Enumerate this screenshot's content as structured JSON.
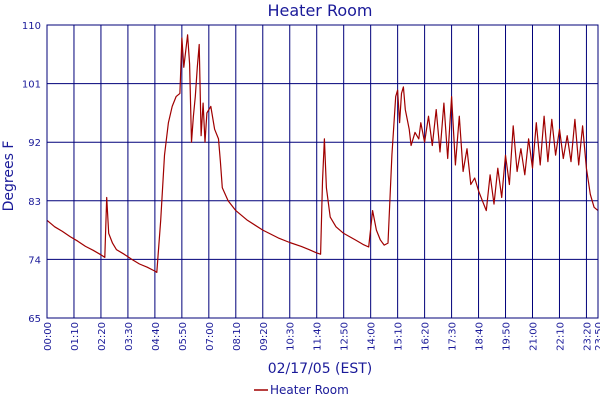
{
  "colors": {
    "grid": "#00007a",
    "text": "#1a1a99",
    "series": "#a00000",
    "background": "#ffffff"
  },
  "chart_data": {
    "type": "line",
    "title": "Heater Room",
    "xlabel": "02/17/05 (EST)",
    "ylabel": "Degrees F",
    "ylim": [
      65,
      110
    ],
    "xlim": [
      "00:00",
      "23:50"
    ],
    "grid": true,
    "legend_position": "bottom-center",
    "y_ticks": [
      65,
      74,
      83,
      92,
      101,
      110
    ],
    "x_ticks": [
      "00:00",
      "01:10",
      "02:20",
      "03:30",
      "04:40",
      "05:50",
      "07:00",
      "08:10",
      "09:20",
      "10:30",
      "11:40",
      "12:50",
      "14:00",
      "15:10",
      "16:20",
      "17:30",
      "18:40",
      "19:50",
      "21:00",
      "22:10",
      "23:20",
      "23:50"
    ],
    "series": [
      {
        "name": "Heater Room",
        "color": "#a00000",
        "points": [
          [
            "00:00",
            80.0
          ],
          [
            "00:20",
            79.0
          ],
          [
            "00:40",
            78.3
          ],
          [
            "01:00",
            77.5
          ],
          [
            "01:20",
            76.8
          ],
          [
            "01:40",
            76.0
          ],
          [
            "02:00",
            75.4
          ],
          [
            "02:20",
            74.7
          ],
          [
            "02:30",
            74.3
          ],
          [
            "02:35",
            83.5
          ],
          [
            "02:40",
            78.0
          ],
          [
            "02:50",
            76.5
          ],
          [
            "03:00",
            75.5
          ],
          [
            "03:20",
            74.8
          ],
          [
            "03:40",
            74.0
          ],
          [
            "04:00",
            73.3
          ],
          [
            "04:20",
            72.8
          ],
          [
            "04:40",
            72.2
          ],
          [
            "04:45",
            72.0
          ],
          [
            "04:55",
            80.0
          ],
          [
            "05:05",
            90.0
          ],
          [
            "05:15",
            95.0
          ],
          [
            "05:25",
            97.5
          ],
          [
            "05:35",
            99.0
          ],
          [
            "05:45",
            99.5
          ],
          [
            "05:50",
            108.0
          ],
          [
            "05:55",
            103.5
          ],
          [
            "06:05",
            108.5
          ],
          [
            "06:10",
            104.0
          ],
          [
            "06:15",
            92.0
          ],
          [
            "06:20",
            96.0
          ],
          [
            "06:25",
            99.0
          ],
          [
            "06:30",
            103.5
          ],
          [
            "06:35",
            107.0
          ],
          [
            "06:40",
            93.0
          ],
          [
            "06:45",
            98.0
          ],
          [
            "06:50",
            92.0
          ],
          [
            "06:55",
            96.5
          ],
          [
            "07:05",
            97.5
          ],
          [
            "07:15",
            94.0
          ],
          [
            "07:25",
            92.5
          ],
          [
            "07:30",
            89.0
          ],
          [
            "07:35",
            85.0
          ],
          [
            "07:50",
            83.0
          ],
          [
            "08:10",
            81.5
          ],
          [
            "08:40",
            80.0
          ],
          [
            "09:20",
            78.5
          ],
          [
            "10:00",
            77.3
          ],
          [
            "10:30",
            76.6
          ],
          [
            "11:00",
            76.0
          ],
          [
            "11:20",
            75.5
          ],
          [
            "11:40",
            75.0
          ],
          [
            "11:50",
            74.8
          ],
          [
            "11:55",
            86.0
          ],
          [
            "12:00",
            92.5
          ],
          [
            "12:05",
            85.0
          ],
          [
            "12:15",
            80.5
          ],
          [
            "12:30",
            79.0
          ],
          [
            "12:50",
            78.0
          ],
          [
            "13:20",
            77.0
          ],
          [
            "13:40",
            76.3
          ],
          [
            "13:55",
            75.9
          ],
          [
            "14:05",
            81.5
          ],
          [
            "14:15",
            78.5
          ],
          [
            "14:25",
            77.0
          ],
          [
            "14:35",
            76.2
          ],
          [
            "14:45",
            76.5
          ],
          [
            "14:55",
            90.0
          ],
          [
            "15:05",
            99.0
          ],
          [
            "15:10",
            100.0
          ],
          [
            "15:15",
            95.0
          ],
          [
            "15:20",
            99.5
          ],
          [
            "15:25",
            100.5
          ],
          [
            "15:30",
            97.0
          ],
          [
            "15:40",
            94.0
          ],
          [
            "15:45",
            91.5
          ],
          [
            "15:55",
            93.5
          ],
          [
            "16:05",
            92.5
          ],
          [
            "16:10",
            95.0
          ],
          [
            "16:20",
            92.0
          ],
          [
            "16:30",
            96.0
          ],
          [
            "16:40",
            91.5
          ],
          [
            "16:50",
            97.0
          ],
          [
            "17:00",
            90.5
          ],
          [
            "17:10",
            98.0
          ],
          [
            "17:20",
            89.5
          ],
          [
            "17:30",
            99.0
          ],
          [
            "17:40",
            88.5
          ],
          [
            "17:50",
            96.0
          ],
          [
            "18:00",
            87.5
          ],
          [
            "18:10",
            91.0
          ],
          [
            "18:20",
            85.5
          ],
          [
            "18:30",
            86.5
          ],
          [
            "18:40",
            84.5
          ],
          [
            "18:50",
            83.0
          ],
          [
            "19:00",
            81.5
          ],
          [
            "19:10",
            87.0
          ],
          [
            "19:20",
            82.5
          ],
          [
            "19:30",
            88.0
          ],
          [
            "19:40",
            83.5
          ],
          [
            "19:50",
            90.0
          ],
          [
            "20:00",
            85.5
          ],
          [
            "20:10",
            94.5
          ],
          [
            "20:20",
            87.5
          ],
          [
            "20:30",
            91.0
          ],
          [
            "20:40",
            87.0
          ],
          [
            "20:50",
            92.5
          ],
          [
            "21:00",
            88.0
          ],
          [
            "21:10",
            95.0
          ],
          [
            "21:20",
            88.5
          ],
          [
            "21:30",
            96.0
          ],
          [
            "21:40",
            89.0
          ],
          [
            "21:50",
            95.5
          ],
          [
            "22:00",
            90.0
          ],
          [
            "22:10",
            94.0
          ],
          [
            "22:20",
            89.5
          ],
          [
            "22:30",
            93.0
          ],
          [
            "22:40",
            89.0
          ],
          [
            "22:50",
            95.5
          ],
          [
            "23:00",
            88.5
          ],
          [
            "23:10",
            94.5
          ],
          [
            "23:20",
            88.0
          ],
          [
            "23:30",
            84.0
          ],
          [
            "23:40",
            82.0
          ],
          [
            "23:50",
            81.5
          ]
        ]
      }
    ]
  }
}
